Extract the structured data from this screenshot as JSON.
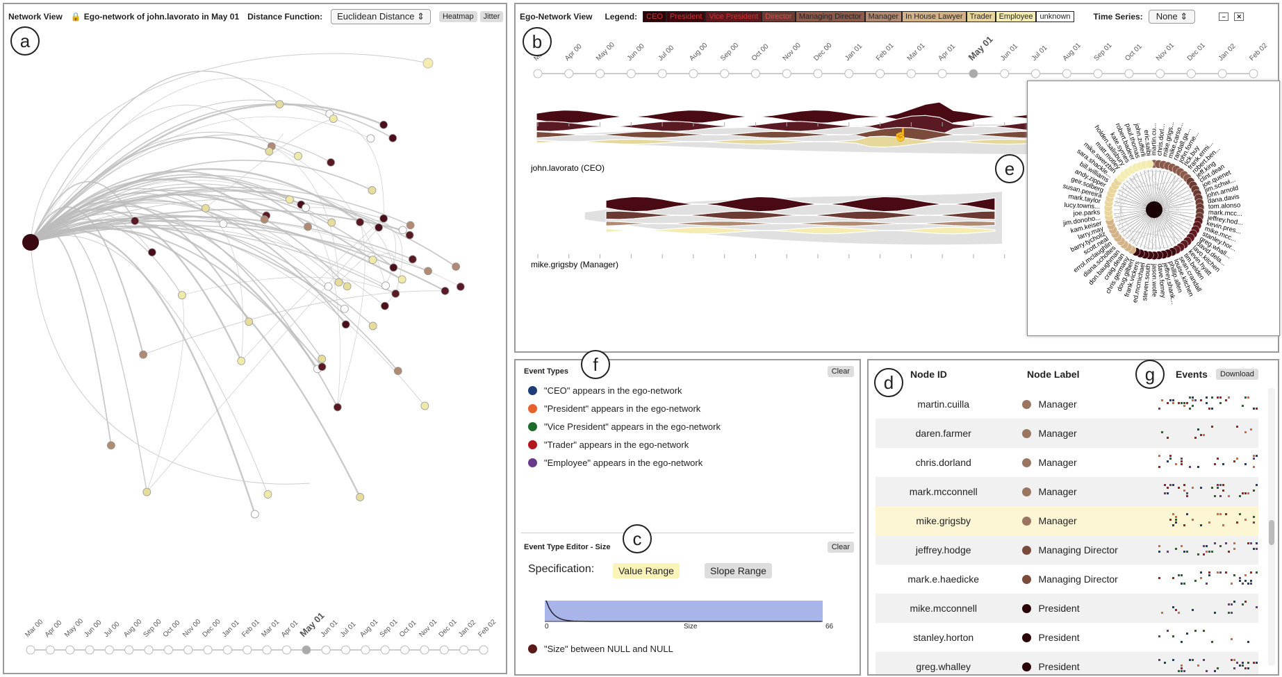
{
  "network_view": {
    "title": "Network View",
    "subtitle": "Ego-network of john.lavorato in May 01",
    "distance_label": "Distance Function:",
    "distance_value": "Euclidean Distance",
    "heatmap": "Heatmap",
    "jitter": "Jitter",
    "months": [
      "Mar 00",
      "Apr 00",
      "May 00",
      "Jun 00",
      "Jul 00",
      "Aug 00",
      "Sep 00",
      "Oct 00",
      "Nov 00",
      "Dec 00",
      "Jan 01",
      "Feb 01",
      "Mar 01",
      "Apr 01",
      "May 01",
      "Jun 01",
      "Jul 01",
      "Aug 01",
      "Sep 01",
      "Oct 01",
      "Nov 01",
      "Dec 01",
      "Jan 02",
      "Feb 02"
    ],
    "selected_month_index": 14
  },
  "ego_view": {
    "title": "Ego-Network View",
    "legend_label": "Legend:",
    "legend": [
      {
        "label": "CEO",
        "color": "#2a0408",
        "text": "#c33"
      },
      {
        "label": "President",
        "color": "#3c070d",
        "text": "#c33"
      },
      {
        "label": "Vice President",
        "color": "#5c1a1f",
        "text": "#c33"
      },
      {
        "label": "Director",
        "color": "#6b3a33",
        "text": "#c55"
      },
      {
        "label": "Managing Director",
        "color": "#8b5a4a",
        "text": "#222"
      },
      {
        "label": "Manager",
        "color": "#b08a72",
        "text": "#222"
      },
      {
        "label": "In House Lawyer",
        "color": "#d4b288",
        "text": "#222"
      },
      {
        "label": "Trader",
        "color": "#e9d59a",
        "text": "#222"
      },
      {
        "label": "Employee",
        "color": "#f4ecb0",
        "text": "#222"
      },
      {
        "label": "unknown",
        "color": "#ffffff",
        "text": "#222"
      }
    ],
    "time_series_label": "Time Series:",
    "time_series_value": "None",
    "months": [
      "Mar 00",
      "Apr 00",
      "May 00",
      "Jun 00",
      "Jul 00",
      "Aug 00",
      "Sep 00",
      "Oct 00",
      "Nov 00",
      "Dec 00",
      "Jan 01",
      "Feb 01",
      "Mar 01",
      "Apr 01",
      "May 01",
      "Jun 01",
      "Jul 01",
      "Aug 01",
      "Sep 01",
      "Oct 01",
      "Nov 01",
      "Dec 01",
      "Jan 02",
      "Feb 02"
    ],
    "selected_month_index": 14,
    "ego1": "john.lavorato (CEO)",
    "ego2": "mike.grigsby (Manager)",
    "radial_names": [
      "martin.cu...",
      "chris.dorl...",
      "mike.grigs...",
      "mike.carso...",
      "randall.ga...",
      "john.forne...",
      "rick.buy",
      "frank.ermi...",
      "robert.ben...",
      "jeff.king",
      "clint.dean",
      "joe.quenet",
      "jim.schwi...",
      "john.arnold",
      "dana.davis",
      "tom.alonso",
      "mark.mcc...",
      "jeffrey.hod...",
      "kevin.pres...",
      "mike.mcc...",
      "stanley.hor...",
      "greg.whall...",
      "david.dela...",
      "lavo.kitchen",
      "kevin.hyatt",
      "tim.belden",
      "sean.crandall",
      "louise.kitchen",
      "phillip.allen",
      "jeffrey.shank...",
      "dave.forney",
      "jason.wolfe",
      "steven.south",
      "ed.mcmichael",
      "frank.vickers",
      "doug.gilbert",
      "chris.germany",
      "craig.dean",
      "don.baughman",
      "diana.scholtes",
      "errol.mclaughlin",
      "scott.neal",
      "barry.tycholiz",
      "larry.may",
      "kam.keiser",
      "jim.donoho...",
      "joe.parks",
      "lucy.towns...",
      "mark.taylor",
      "susan.pereira",
      "geir.solberg",
      "andy.zipper",
      "bill.williams",
      "sara.shackle...",
      "mike.swerzbin",
      "matt.motley",
      "holden.salisbury",
      "kate.symes",
      "robert.badeer",
      "paul.thomas",
      "john.zufferli",
      "eric.saibi"
    ],
    "e": "e",
    "b": "b"
  },
  "event_types": {
    "title": "Event Types",
    "clear": "Clear",
    "items": [
      {
        "label": "\"CEO\" appears in the ego-network",
        "color": "#1f3c7a"
      },
      {
        "label": "\"President\" appears in the ego-network",
        "color": "#e8602a"
      },
      {
        "label": "\"Vice President\" appears in the ego-network",
        "color": "#1d6b2a"
      },
      {
        "label": "\"Trader\" appears in the ego-network",
        "color": "#b3161b"
      },
      {
        "label": "\"Employee\" appears in the ego-network",
        "color": "#6a3a8a"
      }
    ]
  },
  "editor": {
    "title": "Event Type Editor - Size",
    "clear": "Clear",
    "spec_label": "Specification:",
    "value_range": "Value Range",
    "slope_range": "Slope Range",
    "axis_min": "0",
    "axis_label": "Size",
    "axis_max": "66",
    "rule": "\"Size\" between NULL and NULL",
    "rule_color": "#5a1a1a"
  },
  "node_table": {
    "col_id": "Node ID",
    "col_label": "Node Label",
    "col_events": "Events",
    "download": "Download",
    "rows": [
      {
        "id": "martin.cuilla",
        "label": "Manager",
        "color": "#9a7560"
      },
      {
        "id": "daren.farmer",
        "label": "Manager",
        "color": "#9a7560"
      },
      {
        "id": "chris.dorland",
        "label": "Manager",
        "color": "#9a7560"
      },
      {
        "id": "mark.mcconnell",
        "label": "Manager",
        "color": "#9a7560"
      },
      {
        "id": "mike.grigsby",
        "label": "Manager",
        "color": "#9a7560"
      },
      {
        "id": "jeffrey.hodge",
        "label": "Managing Director",
        "color": "#7a4a3a"
      },
      {
        "id": "mark.e.haedicke",
        "label": "Managing Director",
        "color": "#7a4a3a"
      },
      {
        "id": "mike.mcconnell",
        "label": "President",
        "color": "#2a0408"
      },
      {
        "id": "stanley.horton",
        "label": "President",
        "color": "#2a0408"
      },
      {
        "id": "greg.whalley",
        "label": "President",
        "color": "#2a0408"
      }
    ],
    "highlighted_row": 4
  },
  "badges": {
    "a": "a",
    "b": "b",
    "c": "c",
    "d": "d",
    "e": "e",
    "f": "f",
    "g": "g"
  }
}
